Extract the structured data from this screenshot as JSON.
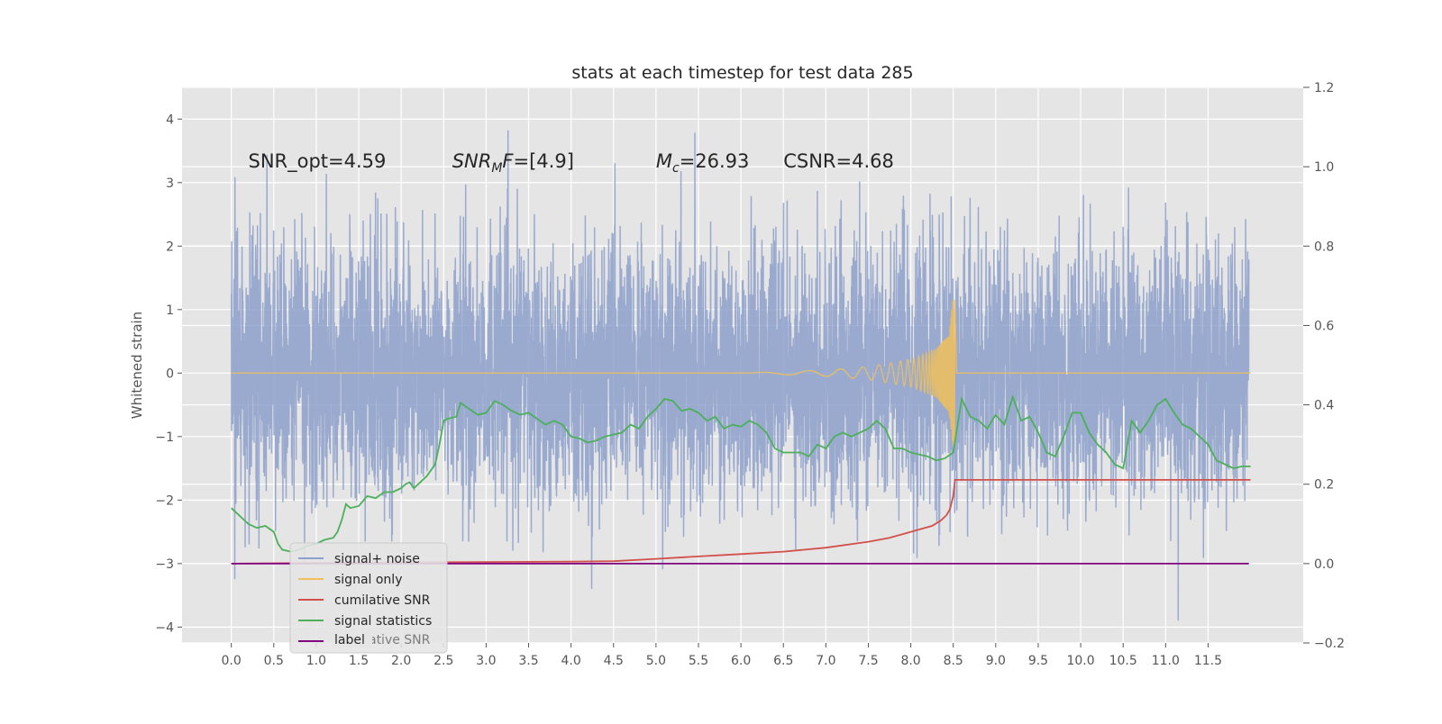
{
  "chart_data": {
    "type": "line",
    "title": "stats at each timestep for test data 285",
    "ylabel": "Whitened strain",
    "xlabel": "",
    "y2label": "",
    "xlim": [
      -0.58,
      12.62
    ],
    "ylim": [
      -4.25,
      4.5
    ],
    "y2lim": [
      -0.2,
      1.2
    ],
    "grid": true,
    "x_ticks": [
      "0.0",
      "0.5",
      "1.0",
      "1.5",
      "2.0",
      "2.5",
      "3.0",
      "3.5",
      "4.0",
      "4.5",
      "5.0",
      "5.5",
      "6.0",
      "6.5",
      "7.0",
      "7.5",
      "8.0",
      "8.5",
      "9.0",
      "9.5",
      "10.0",
      "10.5",
      "11.0",
      "11.5"
    ],
    "y_ticks": [
      "4",
      "3",
      "2",
      "1",
      "0",
      "−1",
      "−2",
      "−3",
      "−4"
    ],
    "y2_ticks": [
      "1.2",
      "1.0",
      "0.8",
      "0.6",
      "0.4",
      "0.2",
      "0.0",
      "−0.2"
    ],
    "annotations": [
      {
        "label": "SNR_opt=4.59",
        "x": 0.2,
        "y": 3.35
      },
      {
        "label": "SNR_MF=[4.9]",
        "x": 2.6,
        "y": 3.35
      },
      {
        "label": "M_c=26.93",
        "x": 5.0,
        "y": 3.35
      },
      {
        "label": "CSNR=4.68",
        "x": 6.5,
        "y": 3.35
      }
    ],
    "legend": {
      "placement": "lower-left",
      "entries": [
        {
          "label": "signal+ noise",
          "color": "#8da0cb"
        },
        {
          "label": "signal only",
          "color": "#f0c05a"
        },
        {
          "label": "cumilative SNR",
          "color": "#d2504a"
        },
        {
          "label": "signal statistics",
          "color": "#4caf5a"
        },
        {
          "label": "label",
          "color": "#800080"
        }
      ],
      "occluded_entry": "cumilative SNR"
    },
    "series": [
      {
        "name": "signal+ noise",
        "axis": "left",
        "color": "#8da0cb",
        "kind": "noise",
        "x_range": [
          0.0,
          11.98
        ],
        "sigma": 1.0,
        "min": -3.9,
        "max": 4.15
      },
      {
        "name": "signal only",
        "axis": "left",
        "color": "#f0c05a",
        "kind": "chirp",
        "x_range": [
          6.0,
          8.52
        ],
        "peak_amplitude": 1.2,
        "envelope": [
          [
            6.0,
            0.0
          ],
          [
            7.0,
            0.05
          ],
          [
            7.5,
            0.1
          ],
          [
            8.0,
            0.22
          ],
          [
            8.3,
            0.38
          ],
          [
            8.45,
            0.62
          ],
          [
            8.5,
            1.2
          ]
        ]
      },
      {
        "name": "cumilative SNR",
        "axis": "right",
        "color": "#d2504a",
        "points": [
          [
            0.0,
            0.0
          ],
          [
            1.0,
            0.0015
          ],
          [
            2.0,
            0.003
          ],
          [
            3.0,
            0.004
          ],
          [
            4.0,
            0.005
          ],
          [
            4.5,
            0.006
          ],
          [
            5.0,
            0.012
          ],
          [
            5.5,
            0.018
          ],
          [
            6.0,
            0.024
          ],
          [
            6.5,
            0.03
          ],
          [
            7.0,
            0.04
          ],
          [
            7.5,
            0.055
          ],
          [
            7.75,
            0.065
          ],
          [
            8.0,
            0.08
          ],
          [
            8.25,
            0.095
          ],
          [
            8.35,
            0.108
          ],
          [
            8.42,
            0.122
          ],
          [
            8.46,
            0.137
          ],
          [
            8.5,
            0.17
          ],
          [
            8.52,
            0.211
          ],
          [
            8.7,
            0.211
          ],
          [
            12.0,
            0.211
          ]
        ]
      },
      {
        "name": "signal statistics",
        "axis": "right",
        "color": "#4caf5a",
        "points": [
          [
            0.0,
            0.14
          ],
          [
            0.1,
            0.12
          ],
          [
            0.2,
            0.1
          ],
          [
            0.3,
            0.09
          ],
          [
            0.4,
            0.095
          ],
          [
            0.5,
            0.08
          ],
          [
            0.55,
            0.05
          ],
          [
            0.6,
            0.035
          ],
          [
            0.7,
            0.03
          ],
          [
            0.8,
            0.035
          ],
          [
            0.9,
            0.045
          ],
          [
            1.0,
            0.05
          ],
          [
            1.1,
            0.06
          ],
          [
            1.2,
            0.065
          ],
          [
            1.25,
            0.08
          ],
          [
            1.3,
            0.11
          ],
          [
            1.35,
            0.15
          ],
          [
            1.4,
            0.14
          ],
          [
            1.5,
            0.145
          ],
          [
            1.6,
            0.17
          ],
          [
            1.7,
            0.165
          ],
          [
            1.8,
            0.18
          ],
          [
            1.9,
            0.18
          ],
          [
            2.0,
            0.19
          ],
          [
            2.05,
            0.2
          ],
          [
            2.1,
            0.205
          ],
          [
            2.15,
            0.19
          ],
          [
            2.2,
            0.2
          ],
          [
            2.3,
            0.22
          ],
          [
            2.4,
            0.25
          ],
          [
            2.45,
            0.3
          ],
          [
            2.5,
            0.36
          ],
          [
            2.55,
            0.365
          ],
          [
            2.65,
            0.37
          ],
          [
            2.7,
            0.405
          ],
          [
            2.8,
            0.39
          ],
          [
            2.9,
            0.375
          ],
          [
            3.0,
            0.38
          ],
          [
            3.1,
            0.41
          ],
          [
            3.2,
            0.4
          ],
          [
            3.3,
            0.385
          ],
          [
            3.4,
            0.375
          ],
          [
            3.5,
            0.38
          ],
          [
            3.6,
            0.365
          ],
          [
            3.7,
            0.35
          ],
          [
            3.8,
            0.36
          ],
          [
            3.9,
            0.35
          ],
          [
            4.0,
            0.32
          ],
          [
            4.1,
            0.315
          ],
          [
            4.2,
            0.305
          ],
          [
            4.3,
            0.31
          ],
          [
            4.4,
            0.32
          ],
          [
            4.5,
            0.325
          ],
          [
            4.6,
            0.33
          ],
          [
            4.7,
            0.35
          ],
          [
            4.8,
            0.34
          ],
          [
            4.9,
            0.37
          ],
          [
            5.0,
            0.39
          ],
          [
            5.1,
            0.415
          ],
          [
            5.2,
            0.41
          ],
          [
            5.3,
            0.385
          ],
          [
            5.4,
            0.39
          ],
          [
            5.5,
            0.38
          ],
          [
            5.6,
            0.36
          ],
          [
            5.7,
            0.37
          ],
          [
            5.8,
            0.34
          ],
          [
            5.9,
            0.35
          ],
          [
            6.0,
            0.345
          ],
          [
            6.1,
            0.36
          ],
          [
            6.2,
            0.35
          ],
          [
            6.3,
            0.33
          ],
          [
            6.4,
            0.29
          ],
          [
            6.5,
            0.28
          ],
          [
            6.6,
            0.28
          ],
          [
            6.7,
            0.28
          ],
          [
            6.8,
            0.27
          ],
          [
            6.9,
            0.3
          ],
          [
            7.0,
            0.29
          ],
          [
            7.1,
            0.32
          ],
          [
            7.2,
            0.33
          ],
          [
            7.3,
            0.32
          ],
          [
            7.4,
            0.33
          ],
          [
            7.5,
            0.34
          ],
          [
            7.6,
            0.36
          ],
          [
            7.7,
            0.34
          ],
          [
            7.8,
            0.29
          ],
          [
            7.9,
            0.29
          ],
          [
            8.0,
            0.28
          ],
          [
            8.1,
            0.275
          ],
          [
            8.2,
            0.27
          ],
          [
            8.3,
            0.26
          ],
          [
            8.4,
            0.265
          ],
          [
            8.5,
            0.28
          ],
          [
            8.6,
            0.415
          ],
          [
            8.7,
            0.37
          ],
          [
            8.8,
            0.36
          ],
          [
            8.9,
            0.34
          ],
          [
            9.0,
            0.375
          ],
          [
            9.1,
            0.35
          ],
          [
            9.2,
            0.42
          ],
          [
            9.3,
            0.36
          ],
          [
            9.4,
            0.37
          ],
          [
            9.5,
            0.33
          ],
          [
            9.6,
            0.28
          ],
          [
            9.7,
            0.27
          ],
          [
            9.8,
            0.32
          ],
          [
            9.9,
            0.38
          ],
          [
            10.0,
            0.38
          ],
          [
            10.1,
            0.33
          ],
          [
            10.2,
            0.3
          ],
          [
            10.3,
            0.28
          ],
          [
            10.4,
            0.25
          ],
          [
            10.5,
            0.24
          ],
          [
            10.6,
            0.36
          ],
          [
            10.7,
            0.33
          ],
          [
            10.8,
            0.36
          ],
          [
            10.9,
            0.4
          ],
          [
            11.0,
            0.415
          ],
          [
            11.1,
            0.38
          ],
          [
            11.2,
            0.35
          ],
          [
            11.3,
            0.34
          ],
          [
            11.4,
            0.32
          ],
          [
            11.5,
            0.3
          ],
          [
            11.6,
            0.26
          ],
          [
            11.7,
            0.25
          ],
          [
            11.8,
            0.24
          ],
          [
            11.9,
            0.245
          ],
          [
            12.0,
            0.245
          ]
        ]
      },
      {
        "name": "label",
        "axis": "right",
        "color": "#800080",
        "points": [
          [
            0.0,
            0.0
          ],
          [
            11.98,
            0.0
          ]
        ]
      }
    ]
  }
}
